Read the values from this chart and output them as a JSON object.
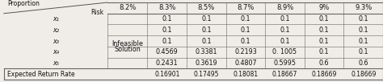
{
  "col_headers": [
    "8.2%",
    "8.3%",
    "8.5%",
    "8.7%",
    "8.9%",
    "9%",
    "9.3%"
  ],
  "row_label_display": [
    "x₁",
    "x₂",
    "x₃",
    "x₄",
    "x₅"
  ],
  "infeasible_label": [
    "Infeasible",
    "Solution"
  ],
  "rows": [
    [
      "0.1",
      "0.1",
      "0.1",
      "0.1",
      "0.1",
      "0.1"
    ],
    [
      "0.1",
      "0.1",
      "0.1",
      "0.1",
      "0.1",
      "0.1"
    ],
    [
      "0.1",
      "0.1",
      "0.1",
      "0.1",
      "0.1",
      "0.1"
    ],
    [
      "0.4569",
      "0.3381",
      "0.2193",
      "0. 1005",
      "0.1",
      "0.1"
    ],
    [
      "0.2431",
      "0.3619",
      "0.4807",
      "0.5995",
      "0.6",
      "0.6"
    ]
  ],
  "footer_label": "Expected Return Rate",
  "footer_values": [
    "0.16901",
    "0.17495",
    "0.18081",
    "0.18667",
    "0.18669",
    "0.18669"
  ],
  "diagonal_label_top": "Risk",
  "diagonal_label_bot": "Proportion",
  "bg_color": "#f0ede8",
  "text_color": "#111111",
  "figsize": [
    4.74,
    1.02
  ],
  "dpi": 100
}
